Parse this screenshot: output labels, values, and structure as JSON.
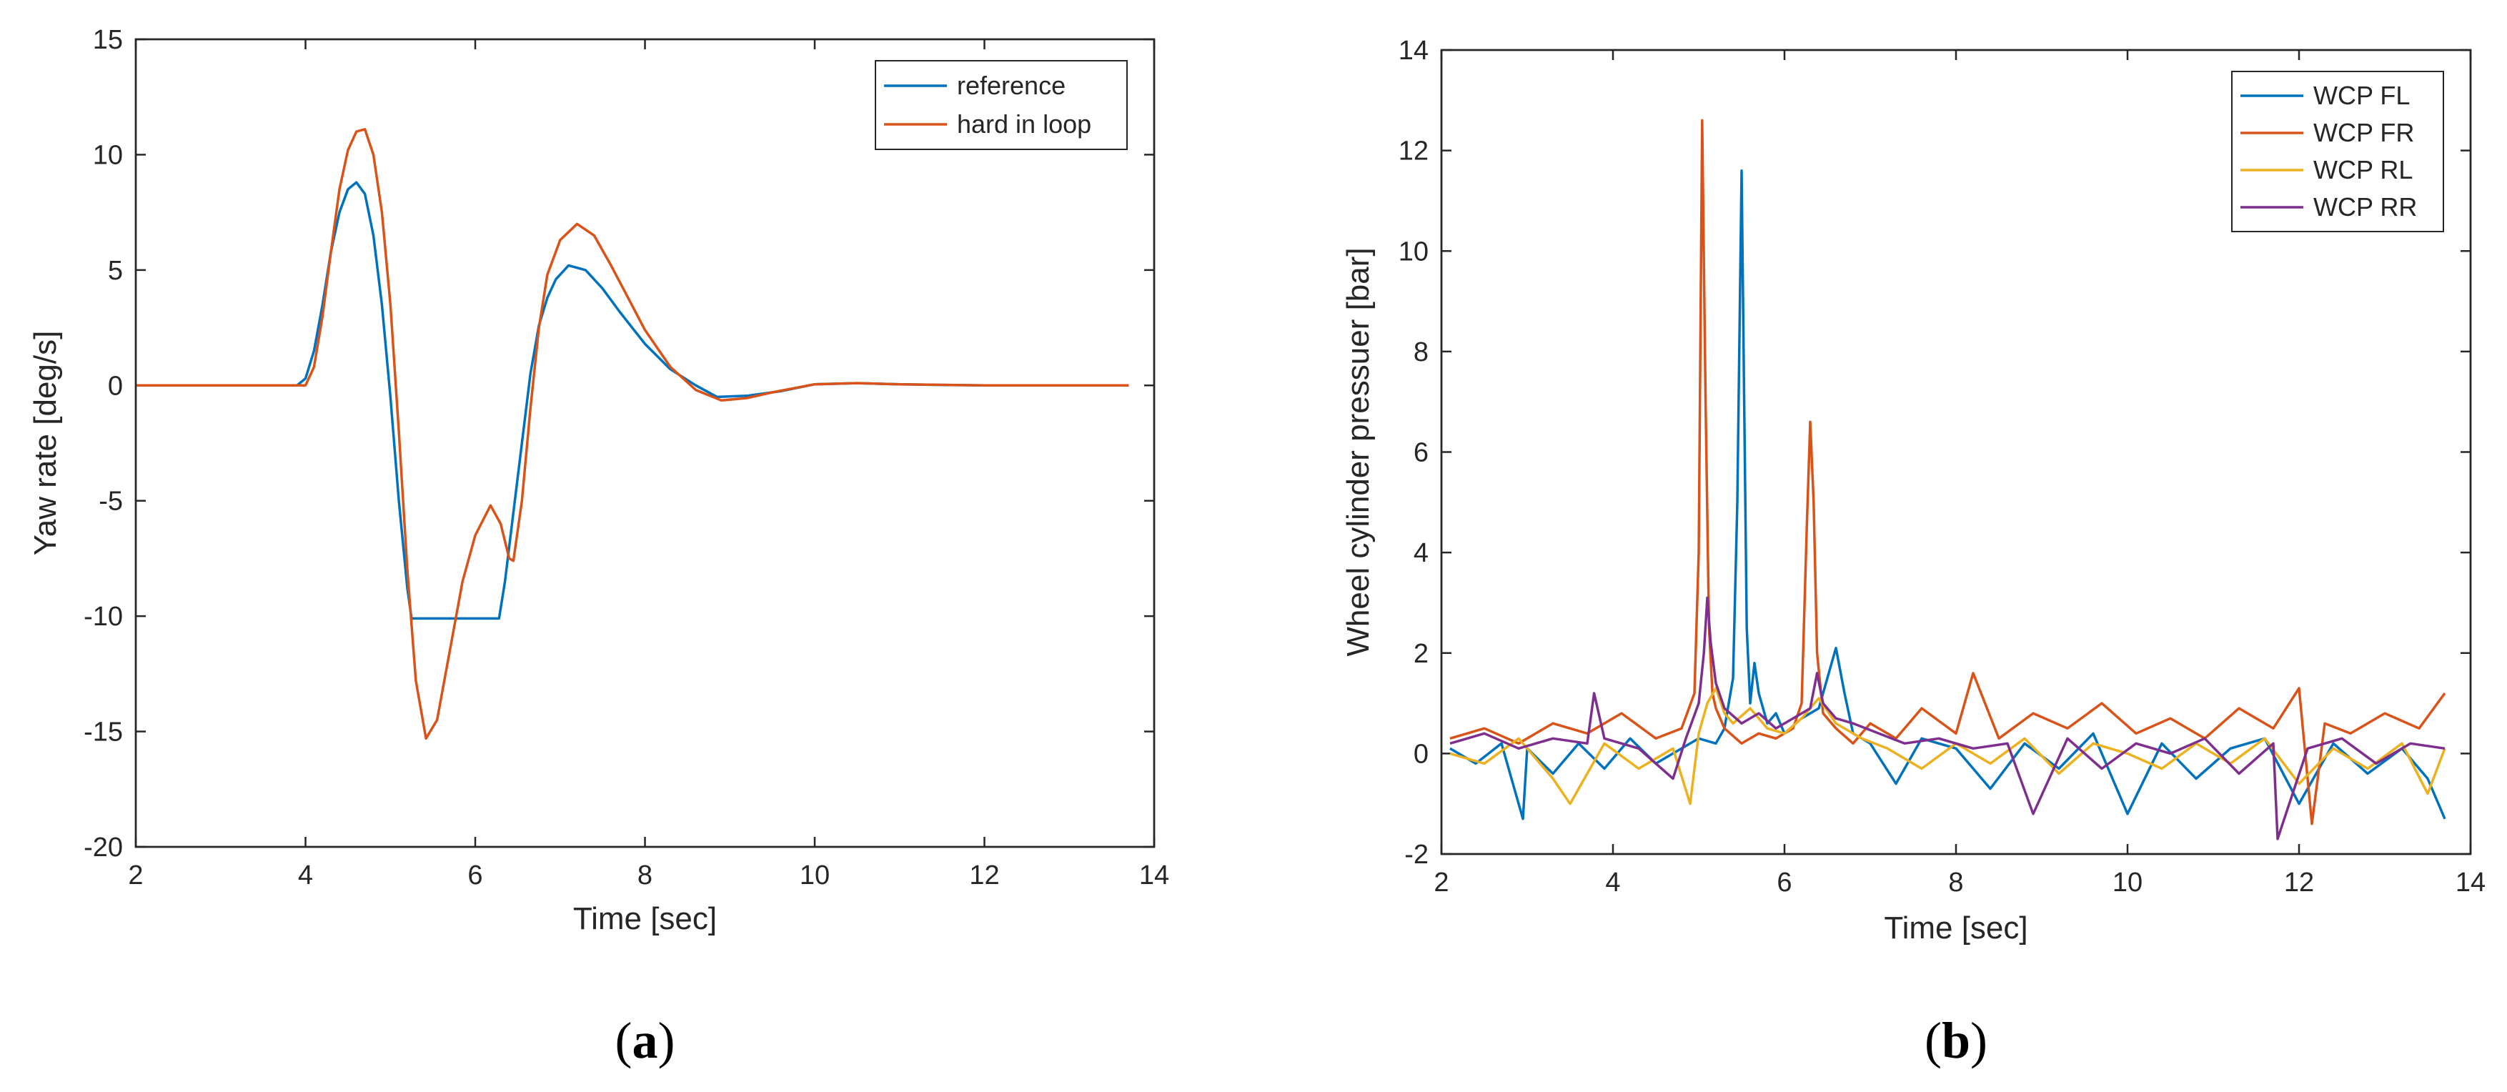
{
  "chart_data": [
    {
      "type": "line",
      "title": "",
      "xlabel": "Time [sec]",
      "ylabel": "Yaw rate [deg/s]",
      "caption": {
        "open": "(",
        "letter": "a",
        "close": ")"
      },
      "xlim": [
        2,
        14
      ],
      "ylim": [
        -20,
        15
      ],
      "xticks": [
        2,
        4,
        6,
        8,
        10,
        12,
        14
      ],
      "yticks": [
        -20,
        -15,
        -10,
        -5,
        0,
        5,
        10,
        15
      ],
      "grid": false,
      "legend_position": "top-right",
      "series": [
        {
          "name": "reference",
          "color": "#0072BD",
          "x": [
            2,
            3.9,
            4.0,
            4.1,
            4.2,
            4.3,
            4.4,
            4.5,
            4.6,
            4.7,
            4.8,
            4.9,
            5.0,
            5.1,
            5.2,
            5.25,
            5.4,
            6.0,
            6.28,
            6.35,
            6.45,
            6.55,
            6.65,
            6.75,
            6.85,
            6.95,
            7.1,
            7.3,
            7.5,
            7.7,
            8.0,
            8.3,
            8.6,
            8.85,
            9.2,
            9.6,
            10.0,
            10.5,
            11.0,
            11.5,
            12.0,
            13.0,
            13.7
          ],
          "y": [
            0,
            0,
            0.3,
            1.5,
            3.5,
            5.8,
            7.5,
            8.5,
            8.8,
            8.3,
            6.5,
            3.5,
            -0.5,
            -5.0,
            -8.8,
            -10.1,
            -10.1,
            -10.1,
            -10.1,
            -8.5,
            -5.5,
            -2.5,
            0.5,
            2.6,
            3.8,
            4.6,
            5.2,
            5.0,
            4.2,
            3.2,
            1.8,
            0.7,
            0.0,
            -0.5,
            -0.45,
            -0.25,
            0.05,
            0.1,
            0.05,
            0.02,
            0,
            0,
            0
          ]
        },
        {
          "name": "hard in loop",
          "color": "#D95319",
          "x": [
            2,
            4.0,
            4.1,
            4.2,
            4.3,
            4.4,
            4.5,
            4.6,
            4.7,
            4.8,
            4.9,
            5.0,
            5.1,
            5.2,
            5.3,
            5.42,
            5.55,
            5.7,
            5.85,
            6.0,
            6.18,
            6.3,
            6.4,
            6.45,
            6.55,
            6.65,
            6.75,
            6.85,
            7.0,
            7.2,
            7.4,
            7.6,
            7.8,
            8.0,
            8.3,
            8.6,
            8.9,
            9.2,
            9.5,
            10.0,
            10.5,
            11.0,
            12.0,
            13.7
          ],
          "y": [
            0,
            0,
            0.8,
            3.0,
            5.8,
            8.5,
            10.2,
            11.0,
            11.1,
            10.0,
            7.5,
            3.5,
            -2.0,
            -8.0,
            -12.8,
            -15.3,
            -14.5,
            -11.5,
            -8.5,
            -6.5,
            -5.2,
            -6.0,
            -7.5,
            -7.6,
            -5.0,
            -1.0,
            2.5,
            4.8,
            6.3,
            7.0,
            6.5,
            5.2,
            3.8,
            2.4,
            0.8,
            -0.2,
            -0.65,
            -0.55,
            -0.3,
            0.05,
            0.1,
            0.05,
            0,
            0
          ]
        }
      ]
    },
    {
      "type": "line",
      "title": "",
      "xlabel": "Time [sec]",
      "ylabel": "Wheel cylinder pressuer [bar]",
      "caption": {
        "open": "(",
        "letter": "b",
        "close": ")"
      },
      "xlim": [
        2,
        14
      ],
      "ylim": [
        -2,
        14
      ],
      "xticks": [
        2,
        4,
        6,
        8,
        10,
        12,
        14
      ],
      "yticks": [
        -2,
        0,
        2,
        4,
        6,
        8,
        10,
        12,
        14
      ],
      "grid": false,
      "legend_position": "top-right",
      "series": [
        {
          "name": "WCP FL",
          "color": "#0072BD",
          "x": [
            2.1,
            2.4,
            2.7,
            2.95,
            3.0,
            3.3,
            3.6,
            3.9,
            4.2,
            4.5,
            4.8,
            5.0,
            5.2,
            5.3,
            5.4,
            5.45,
            5.5,
            5.53,
            5.56,
            5.6,
            5.65,
            5.7,
            5.8,
            5.9,
            6.0,
            6.2,
            6.4,
            6.5,
            6.6,
            6.7,
            6.8,
            7.0,
            7.3,
            7.6,
            8.0,
            8.4,
            8.8,
            9.2,
            9.6,
            10.0,
            10.4,
            10.8,
            11.2,
            11.6,
            12.0,
            12.4,
            12.8,
            13.2,
            13.5,
            13.7
          ],
          "y": [
            0.1,
            -0.2,
            0.2,
            -1.3,
            0.1,
            -0.4,
            0.2,
            -0.3,
            0.3,
            -0.2,
            0.1,
            0.3,
            0.2,
            0.5,
            1.5,
            5.0,
            11.6,
            7.0,
            2.5,
            1.0,
            1.8,
            1.2,
            0.6,
            0.8,
            0.4,
            0.7,
            0.9,
            1.5,
            2.1,
            1.2,
            0.4,
            0.2,
            -0.6,
            0.3,
            0.1,
            -0.7,
            0.2,
            -0.3,
            0.4,
            -1.2,
            0.2,
            -0.5,
            0.1,
            0.3,
            -1.0,
            0.2,
            -0.4,
            0.1,
            -0.5,
            -1.3
          ]
        },
        {
          "name": "WCP FR",
          "color": "#D95319",
          "x": [
            2.1,
            2.5,
            2.9,
            3.3,
            3.7,
            4.1,
            4.5,
            4.8,
            4.95,
            5.0,
            5.04,
            5.08,
            5.12,
            5.16,
            5.2,
            5.3,
            5.5,
            5.7,
            5.9,
            6.1,
            6.2,
            6.26,
            6.3,
            6.34,
            6.38,
            6.45,
            6.6,
            6.8,
            7.0,
            7.3,
            7.6,
            8.0,
            8.2,
            8.5,
            8.9,
            9.3,
            9.7,
            10.1,
            10.5,
            10.9,
            11.3,
            11.7,
            12.0,
            12.15,
            12.3,
            12.6,
            13.0,
            13.4,
            13.7
          ],
          "y": [
            0.3,
            0.5,
            0.2,
            0.6,
            0.4,
            0.8,
            0.3,
            0.5,
            1.2,
            4.0,
            12.6,
            7.0,
            2.5,
            1.2,
            0.9,
            0.5,
            0.2,
            0.4,
            0.3,
            0.5,
            1.0,
            4.5,
            6.6,
            5.0,
            2.0,
            0.8,
            0.5,
            0.2,
            0.6,
            0.3,
            0.9,
            0.4,
            1.6,
            0.3,
            0.8,
            0.5,
            1.0,
            0.4,
            0.7,
            0.3,
            0.9,
            0.5,
            1.3,
            -1.4,
            0.6,
            0.4,
            0.8,
            0.5,
            1.2
          ]
        },
        {
          "name": "WCP RL",
          "color": "#EDB120",
          "x": [
            2.1,
            2.5,
            2.9,
            3.3,
            3.5,
            3.9,
            4.3,
            4.7,
            4.9,
            5.0,
            5.1,
            5.2,
            5.3,
            5.4,
            5.6,
            5.8,
            6.0,
            6.2,
            6.4,
            6.6,
            6.9,
            7.2,
            7.6,
            8.0,
            8.4,
            8.8,
            9.2,
            9.6,
            10.0,
            10.4,
            10.8,
            11.2,
            11.6,
            12.0,
            12.4,
            12.8,
            13.2,
            13.5,
            13.7
          ],
          "y": [
            0.0,
            -0.2,
            0.3,
            -0.5,
            -1.0,
            0.2,
            -0.3,
            0.1,
            -1.0,
            0.4,
            1.0,
            1.3,
            0.8,
            0.6,
            0.9,
            0.5,
            0.4,
            0.7,
            1.1,
            0.6,
            0.3,
            0.1,
            -0.3,
            0.2,
            -0.2,
            0.3,
            -0.4,
            0.2,
            0.0,
            -0.3,
            0.2,
            -0.2,
            0.3,
            -0.6,
            0.1,
            -0.3,
            0.2,
            -0.8,
            0.1
          ]
        },
        {
          "name": "WCP RR",
          "color": "#7E2F8E",
          "x": [
            2.1,
            2.5,
            2.9,
            3.3,
            3.7,
            3.78,
            3.9,
            4.3,
            4.7,
            4.85,
            5.0,
            5.06,
            5.1,
            5.14,
            5.2,
            5.3,
            5.5,
            5.7,
            5.9,
            6.1,
            6.3,
            6.38,
            6.45,
            6.6,
            6.8,
            7.1,
            7.4,
            7.8,
            8.2,
            8.6,
            8.9,
            9.3,
            9.7,
            10.1,
            10.5,
            10.9,
            11.3,
            11.7,
            11.75,
            12.1,
            12.5,
            12.9,
            13.3,
            13.7
          ],
          "y": [
            0.2,
            0.4,
            0.1,
            0.3,
            0.2,
            1.2,
            0.3,
            0.1,
            -0.5,
            0.3,
            1.0,
            2.0,
            3.1,
            2.2,
            1.4,
            0.9,
            0.6,
            0.8,
            0.5,
            0.7,
            0.9,
            1.6,
            1.0,
            0.7,
            0.6,
            0.4,
            0.2,
            0.3,
            0.1,
            0.2,
            -1.2,
            0.3,
            -0.3,
            0.2,
            0.0,
            0.3,
            -0.4,
            0.2,
            -1.7,
            0.1,
            0.3,
            -0.2,
            0.2,
            0.1
          ]
        }
      ]
    }
  ]
}
